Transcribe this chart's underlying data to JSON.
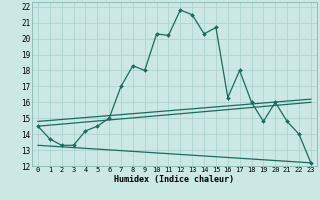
{
  "xlabel": "Humidex (Indice chaleur)",
  "background_color": "#cce8e4",
  "line_color": "#1a6b5e",
  "grid_color": "#aed4cf",
  "xlim": [
    -0.5,
    23.5
  ],
  "ylim": [
    12,
    22.3
  ],
  "xticks": [
    0,
    1,
    2,
    3,
    4,
    5,
    6,
    7,
    8,
    9,
    10,
    11,
    12,
    13,
    14,
    15,
    16,
    17,
    18,
    19,
    20,
    21,
    22,
    23
  ],
  "yticks": [
    12,
    13,
    14,
    15,
    16,
    17,
    18,
    19,
    20,
    21,
    22
  ],
  "main_line": {
    "x": [
      0,
      1,
      2,
      3,
      4,
      5,
      6,
      7,
      8,
      9,
      10,
      11,
      12,
      13,
      14,
      15,
      16,
      17,
      18,
      19,
      20,
      21,
      22,
      23
    ],
    "y": [
      14.5,
      13.7,
      13.3,
      13.3,
      14.2,
      14.5,
      15.0,
      17.0,
      18.3,
      18.0,
      20.3,
      20.2,
      21.8,
      21.5,
      20.3,
      20.7,
      16.3,
      18.0,
      16.0,
      14.8,
      16.0,
      14.8,
      14.0,
      12.2
    ]
  },
  "line_bottom": {
    "x": [
      0,
      23
    ],
    "y": [
      13.3,
      12.2
    ]
  },
  "line_mid1": {
    "x": [
      0,
      23
    ],
    "y": [
      14.5,
      16.0
    ]
  },
  "line_mid2": {
    "x": [
      0,
      23
    ],
    "y": [
      14.8,
      16.2
    ]
  }
}
